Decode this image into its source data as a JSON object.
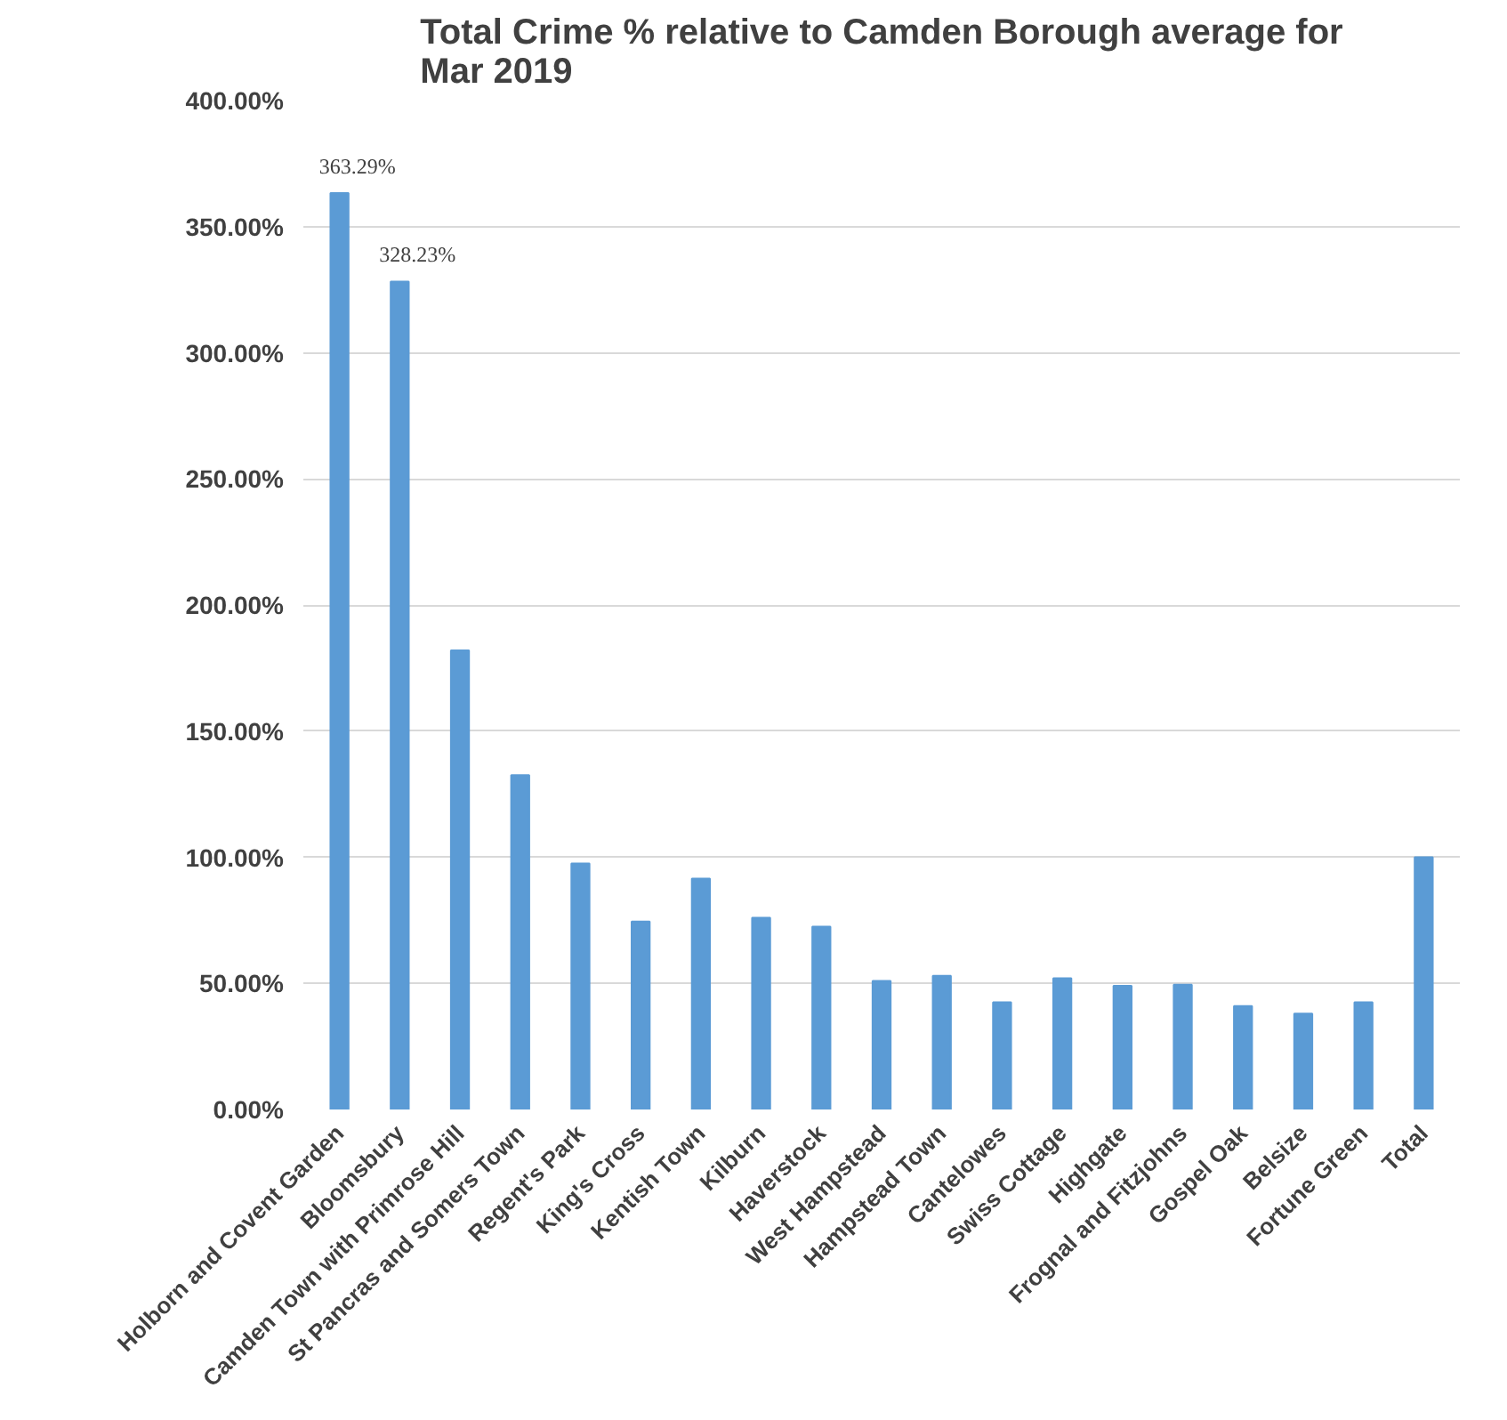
{
  "chart_data": {
    "type": "bar",
    "title": "Total Crime % relative to Camden Borough average for Mar 2019",
    "categories": [
      "Holborn and Covent Garden",
      "Bloomsbury",
      "Camden Town with Primrose Hill",
      "St Pancras and Somers Town",
      "Regent's Park",
      "King's Cross",
      "Kentish Town",
      "Kilburn",
      "Haverstock",
      "West Hampstead",
      "Hampstead Town",
      "Cantelowes",
      "Swiss Cottage",
      "Highgate",
      "Frognal and Fitzjohns",
      "Gospel Oak",
      "Belsize",
      "Fortune Green",
      "Total"
    ],
    "values": [
      363.29,
      328.23,
      182,
      132.5,
      97.5,
      74.5,
      91.5,
      76,
      72.5,
      51,
      53,
      42.5,
      52,
      49,
      49.5,
      41,
      38,
      42.5,
      100
    ],
    "value_labels": [
      "363.29%",
      "328.23%",
      null,
      null,
      null,
      null,
      null,
      null,
      null,
      null,
      null,
      null,
      null,
      null,
      null,
      null,
      null,
      null,
      null
    ],
    "color": "#5b9bd5",
    "ylim": [
      0,
      400
    ],
    "yticks": [
      {
        "value": 0,
        "label": "0.00%"
      },
      {
        "value": 50,
        "label": "50.00%"
      },
      {
        "value": 100,
        "label": "100.00%"
      },
      {
        "value": 150,
        "label": "150.00%"
      },
      {
        "value": 200,
        "label": "200.00%"
      },
      {
        "value": 250,
        "label": "250.00%"
      },
      {
        "value": 300,
        "label": "300.00%"
      },
      {
        "value": 350,
        "label": "350.00%"
      },
      {
        "value": 400,
        "label": "400.00%"
      }
    ],
    "grid": "y"
  }
}
